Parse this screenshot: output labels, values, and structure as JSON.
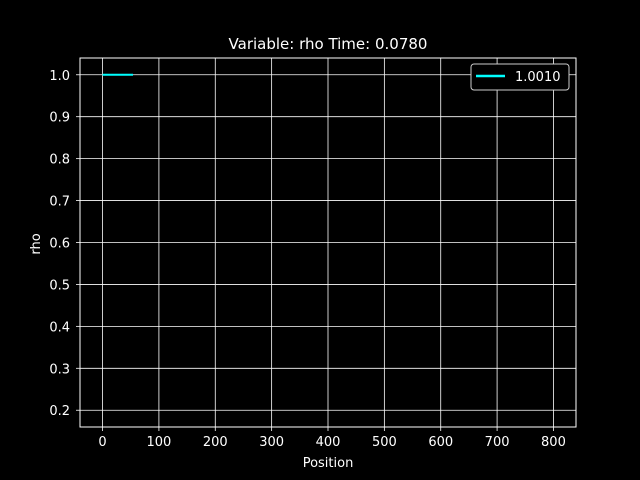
{
  "chart_data": {
    "type": "line",
    "title": "Variable: rho Time: 0.0780",
    "xlabel": "Position",
    "ylabel": "rho",
    "xlim": [
      -40,
      840
    ],
    "ylim": [
      0.16,
      1.04
    ],
    "x_ticks": [
      0,
      100,
      200,
      300,
      400,
      500,
      600,
      700,
      800
    ],
    "x_tick_labels": [
      "0",
      "100",
      "200",
      "300",
      "400",
      "500",
      "600",
      "700",
      "800"
    ],
    "y_ticks": [
      0.2,
      0.3,
      0.4,
      0.5,
      0.6,
      0.7,
      0.8,
      0.9,
      1.0
    ],
    "y_tick_labels": [
      "0.2",
      "0.3",
      "0.4",
      "0.5",
      "0.6",
      "0.7",
      "0.8",
      "0.9",
      "1.0"
    ],
    "grid": true,
    "legend_position": "upper right",
    "background": "#000000",
    "foreground": "#ffffff",
    "series": [
      {
        "name": "1.0010",
        "color": "#00ffff",
        "x": [
          0,
          54
        ],
        "y": [
          1.0,
          1.0
        ]
      }
    ]
  }
}
